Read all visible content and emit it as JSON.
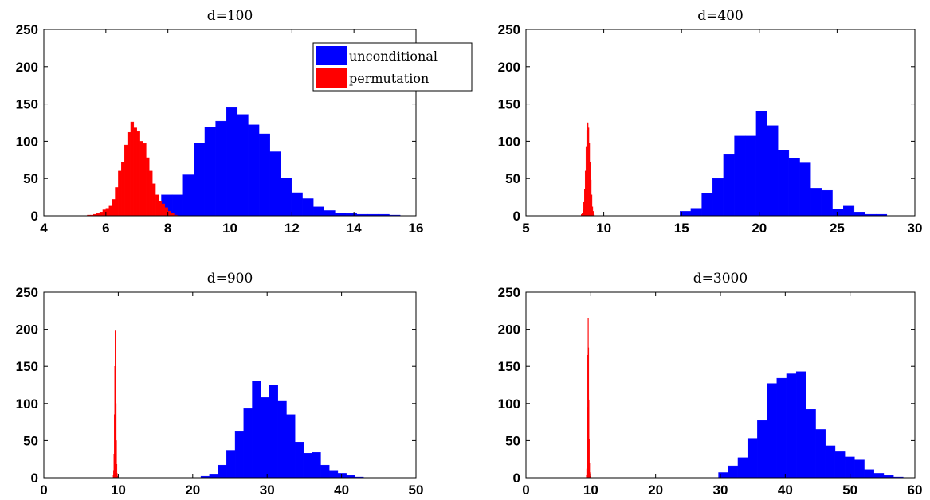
{
  "figure": {
    "legend": {
      "entries": [
        {
          "label": "unconditional",
          "color": "#0000ff"
        },
        {
          "label": "permutation",
          "color": "#ff0000"
        }
      ],
      "location": "top-right of first panel"
    }
  },
  "chart_data": [
    {
      "type": "bar",
      "title": "d=100",
      "xlim": [
        4,
        16
      ],
      "ylim": [
        0,
        250
      ],
      "xticks": [
        4,
        6,
        8,
        10,
        12,
        14,
        16
      ],
      "yticks": [
        0,
        50,
        100,
        150,
        200,
        250
      ],
      "grid": false,
      "series": [
        {
          "name": "unconditional",
          "color": "#0000ff",
          "bin_width": 0.35,
          "bin_left_edges": [
            7.79,
            8.14,
            8.49,
            8.84,
            9.19,
            9.54,
            9.89,
            10.24,
            10.59,
            10.94,
            11.29,
            11.64,
            11.99,
            12.34,
            12.69,
            13.04,
            13.39,
            13.74,
            14.09,
            14.44,
            14.79,
            15.14
          ],
          "counts": [
            28,
            28,
            55,
            98,
            119,
            127,
            145,
            136,
            122,
            110,
            86,
            51,
            31,
            23,
            12,
            7,
            4,
            3,
            2,
            2,
            2,
            1
          ]
        },
        {
          "name": "permutation",
          "color": "#ff0000",
          "bin_width": 0.1,
          "bin_left_edges": [
            5.4,
            5.5,
            5.6,
            5.7,
            5.8,
            5.9,
            6.0,
            6.1,
            6.2,
            6.3,
            6.4,
            6.5,
            6.6,
            6.7,
            6.8,
            6.9,
            7.0,
            7.1,
            7.2,
            7.3,
            7.4,
            7.5,
            7.6,
            7.7,
            7.8,
            7.9,
            8.0,
            8.1,
            8.2
          ],
          "counts": [
            1,
            1,
            2,
            3,
            5,
            8,
            10,
            13,
            22,
            38,
            60,
            72,
            95,
            112,
            126,
            118,
            113,
            100,
            97,
            78,
            60,
            43,
            28,
            20,
            16,
            11,
            6,
            3,
            1
          ]
        }
      ]
    },
    {
      "type": "bar",
      "title": "d=400",
      "xlim": [
        5,
        30
      ],
      "ylim": [
        0,
        250
      ],
      "xticks": [
        5,
        10,
        15,
        20,
        25,
        30
      ],
      "yticks": [
        0,
        50,
        100,
        150,
        200,
        250
      ],
      "grid": false,
      "series": [
        {
          "name": "unconditional",
          "color": "#0000ff",
          "bin_width": 0.7,
          "bin_left_edges": [
            14.9,
            15.6,
            16.3,
            17.0,
            17.7,
            18.4,
            19.1,
            19.8,
            20.5,
            21.2,
            21.9,
            22.6,
            23.3,
            24.0,
            24.7,
            25.4,
            26.1,
            26.8,
            27.5
          ],
          "counts": [
            6,
            10,
            30,
            50,
            82,
            107,
            107,
            140,
            121,
            88,
            77,
            71,
            37,
            34,
            9,
            13,
            5,
            2,
            2
          ]
        },
        {
          "name": "permutation",
          "color": "#ff0000",
          "bin_width": 0.05,
          "bin_left_edges": [
            8.55,
            8.6,
            8.65,
            8.7,
            8.75,
            8.8,
            8.85,
            8.9,
            8.95,
            9.0,
            9.05,
            9.1,
            9.15,
            9.2,
            9.25,
            9.3,
            9.35
          ],
          "counts": [
            2,
            4,
            8,
            18,
            35,
            60,
            92,
            115,
            125,
            118,
            98,
            72,
            48,
            28,
            12,
            6,
            2
          ]
        }
      ]
    },
    {
      "type": "bar",
      "title": "d=900",
      "xlim": [
        0,
        50
      ],
      "ylim": [
        0,
        250
      ],
      "xticks": [
        0,
        10,
        20,
        30,
        40,
        50
      ],
      "yticks": [
        0,
        50,
        100,
        150,
        200,
        250
      ],
      "grid": false,
      "series": [
        {
          "name": "unconditional",
          "color": "#0000ff",
          "bin_width": 1.15,
          "bin_left_edges": [
            21.1,
            22.25,
            23.4,
            24.55,
            25.7,
            26.85,
            28.0,
            29.15,
            30.3,
            31.45,
            32.6,
            33.75,
            34.9,
            36.05,
            37.2,
            38.35,
            39.5,
            40.65,
            41.8
          ],
          "counts": [
            2,
            5,
            17,
            37,
            63,
            93,
            130,
            108,
            125,
            103,
            85,
            48,
            33,
            34,
            17,
            10,
            6,
            3,
            1
          ]
        },
        {
          "name": "permutation",
          "color": "#ff0000",
          "bin_width": 0.05,
          "bin_left_edges": [
            9.3,
            9.35,
            9.4,
            9.45,
            9.5,
            9.55,
            9.6,
            9.65,
            9.7,
            9.75,
            9.8,
            9.85
          ],
          "counts": [
            3,
            10,
            32,
            85,
            150,
            198,
            165,
            100,
            50,
            18,
            6,
            2
          ]
        }
      ]
    },
    {
      "type": "bar",
      "title": "d=3000",
      "xlim": [
        0,
        60
      ],
      "ylim": [
        0,
        250
      ],
      "xticks": [
        0,
        10,
        20,
        30,
        40,
        50,
        60
      ],
      "yticks": [
        0,
        50,
        100,
        150,
        200,
        250
      ],
      "grid": false,
      "series": [
        {
          "name": "unconditional",
          "color": "#0000ff",
          "bin_width": 1.5,
          "bin_left_edges": [
            29.7,
            31.2,
            32.7,
            34.2,
            35.7,
            37.2,
            38.7,
            40.2,
            41.7,
            43.2,
            44.7,
            46.2,
            47.7,
            49.2,
            50.7,
            52.2,
            53.7,
            55.2,
            56.7
          ],
          "counts": [
            7,
            16,
            27,
            53,
            77,
            127,
            134,
            140,
            143,
            92,
            65,
            43,
            35,
            28,
            24,
            11,
            6,
            3,
            1
          ]
        },
        {
          "name": "permutation",
          "color": "#ff0000",
          "bin_width": 0.05,
          "bin_left_edges": [
            9.3,
            9.35,
            9.4,
            9.45,
            9.5,
            9.55,
            9.6,
            9.65,
            9.7,
            9.75,
            9.8,
            9.85
          ],
          "counts": [
            3,
            12,
            38,
            95,
            165,
            215,
            175,
            105,
            52,
            20,
            7,
            2
          ]
        }
      ]
    }
  ]
}
